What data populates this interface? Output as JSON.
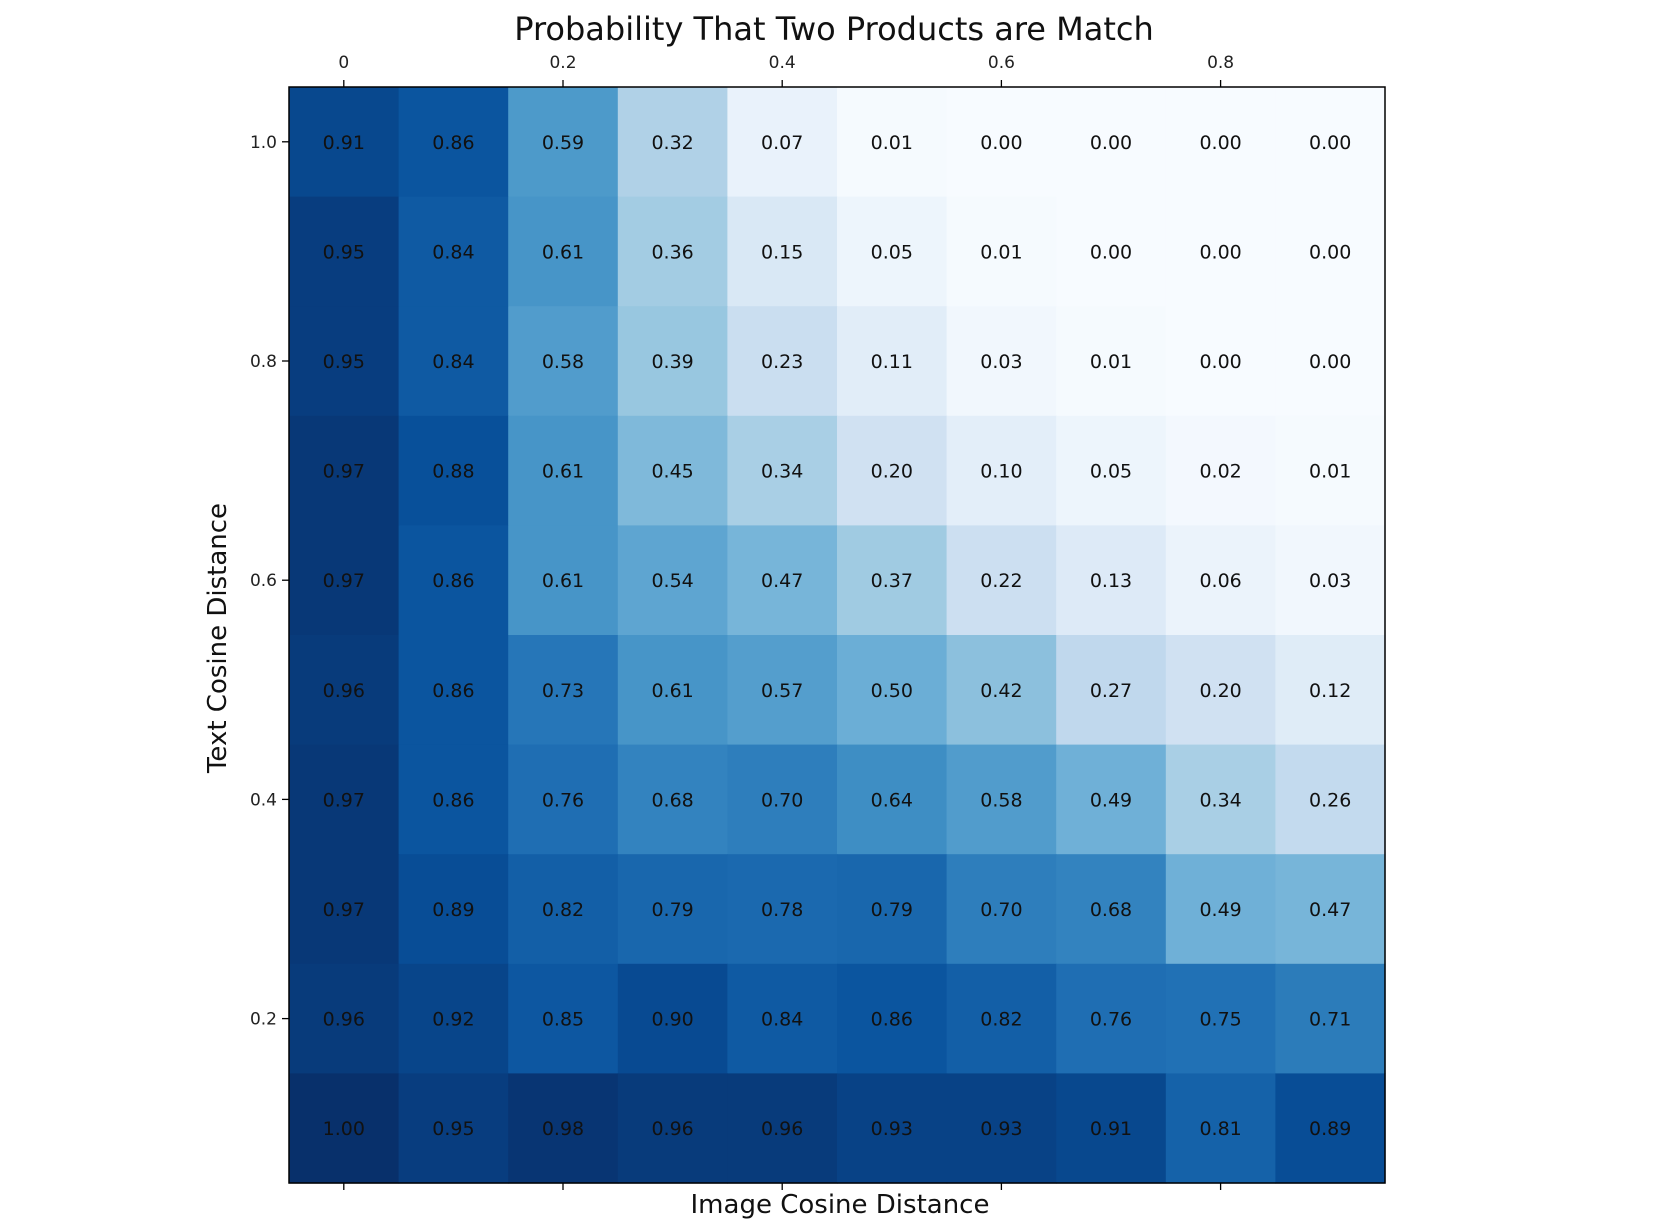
{
  "chart_data": {
    "type": "heatmap",
    "title": "Probability That Two Products are Match",
    "xlabel": "Image Cosine Distance",
    "ylabel": "Text Cosine Distance",
    "x_tick_labels": [
      "0",
      "0.2",
      "0.4",
      "0.6",
      "0.8"
    ],
    "x_tick_columns": [
      0,
      2,
      4,
      6,
      8
    ],
    "x_axis_position": "top",
    "y_tick_labels": [
      "1.0",
      "0.8",
      "0.6",
      "0.4",
      "0.2"
    ],
    "y_tick_rows": [
      0,
      2,
      4,
      6,
      8
    ],
    "colormap": "Blues",
    "color_range": [
      0,
      1
    ],
    "grid": false,
    "rows": 10,
    "columns": 10,
    "values": [
      [
        0.91,
        0.86,
        0.59,
        0.32,
        0.07,
        0.01,
        0.0,
        0.0,
        0.0,
        0.0
      ],
      [
        0.95,
        0.84,
        0.61,
        0.36,
        0.15,
        0.05,
        0.01,
        0.0,
        0.0,
        0.0
      ],
      [
        0.95,
        0.84,
        0.58,
        0.39,
        0.23,
        0.11,
        0.03,
        0.01,
        0.0,
        0.0
      ],
      [
        0.97,
        0.88,
        0.61,
        0.45,
        0.34,
        0.2,
        0.1,
        0.05,
        0.02,
        0.01
      ],
      [
        0.97,
        0.86,
        0.61,
        0.54,
        0.47,
        0.37,
        0.22,
        0.13,
        0.06,
        0.03
      ],
      [
        0.96,
        0.86,
        0.73,
        0.61,
        0.57,
        0.5,
        0.42,
        0.27,
        0.2,
        0.12
      ],
      [
        0.97,
        0.86,
        0.76,
        0.68,
        0.7,
        0.64,
        0.58,
        0.49,
        0.34,
        0.26
      ],
      [
        0.97,
        0.89,
        0.82,
        0.79,
        0.78,
        0.79,
        0.7,
        0.68,
        0.49,
        0.47
      ],
      [
        0.96,
        0.92,
        0.85,
        0.9,
        0.84,
        0.86,
        0.82,
        0.76,
        0.75,
        0.71
      ],
      [
        1.0,
        0.95,
        0.98,
        0.96,
        0.96,
        0.93,
        0.93,
        0.91,
        0.81,
        0.89
      ]
    ],
    "cell_labels": [
      [
        "0.91",
        "0.86",
        "0.59",
        "0.32",
        "0.07",
        "0.01",
        "0.00",
        "0.00",
        "0.00",
        "0.00"
      ],
      [
        "0.95",
        "0.84",
        "0.61",
        "0.36",
        "0.15",
        "0.05",
        "0.01",
        "0.00",
        "0.00",
        "0.00"
      ],
      [
        "0.95",
        "0.84",
        "0.58",
        "0.39",
        "0.23",
        "0.11",
        "0.03",
        "0.01",
        "0.00",
        "0.00"
      ],
      [
        "0.97",
        "0.88",
        "0.61",
        "0.45",
        "0.34",
        "0.20",
        "0.10",
        "0.05",
        "0.02",
        "0.01"
      ],
      [
        "0.97",
        "0.86",
        "0.61",
        "0.54",
        "0.47",
        "0.37",
        "0.22",
        "0.13",
        "0.06",
        "0.03"
      ],
      [
        "0.96",
        "0.86",
        "0.73",
        "0.61",
        "0.57",
        "0.50",
        "0.42",
        "0.27",
        "0.20",
        "0.12"
      ],
      [
        "0.97",
        "0.86",
        "0.76",
        "0.68",
        "0.70",
        "0.64",
        "0.58",
        "0.49",
        "0.34",
        "0.26"
      ],
      [
        "0.97",
        "0.89",
        "0.82",
        "0.79",
        "0.78",
        "0.79",
        "0.70",
        "0.68",
        "0.49",
        "0.47"
      ],
      [
        "0.96",
        "0.92",
        "0.85",
        "0.90",
        "0.84",
        "0.86",
        "0.82",
        "0.76",
        "0.75",
        "0.71"
      ],
      [
        "1.00",
        "0.95",
        "0.98",
        "0.96",
        "0.96",
        "0.93",
        "0.93",
        "0.91",
        "0.81",
        "0.89"
      ]
    ]
  }
}
